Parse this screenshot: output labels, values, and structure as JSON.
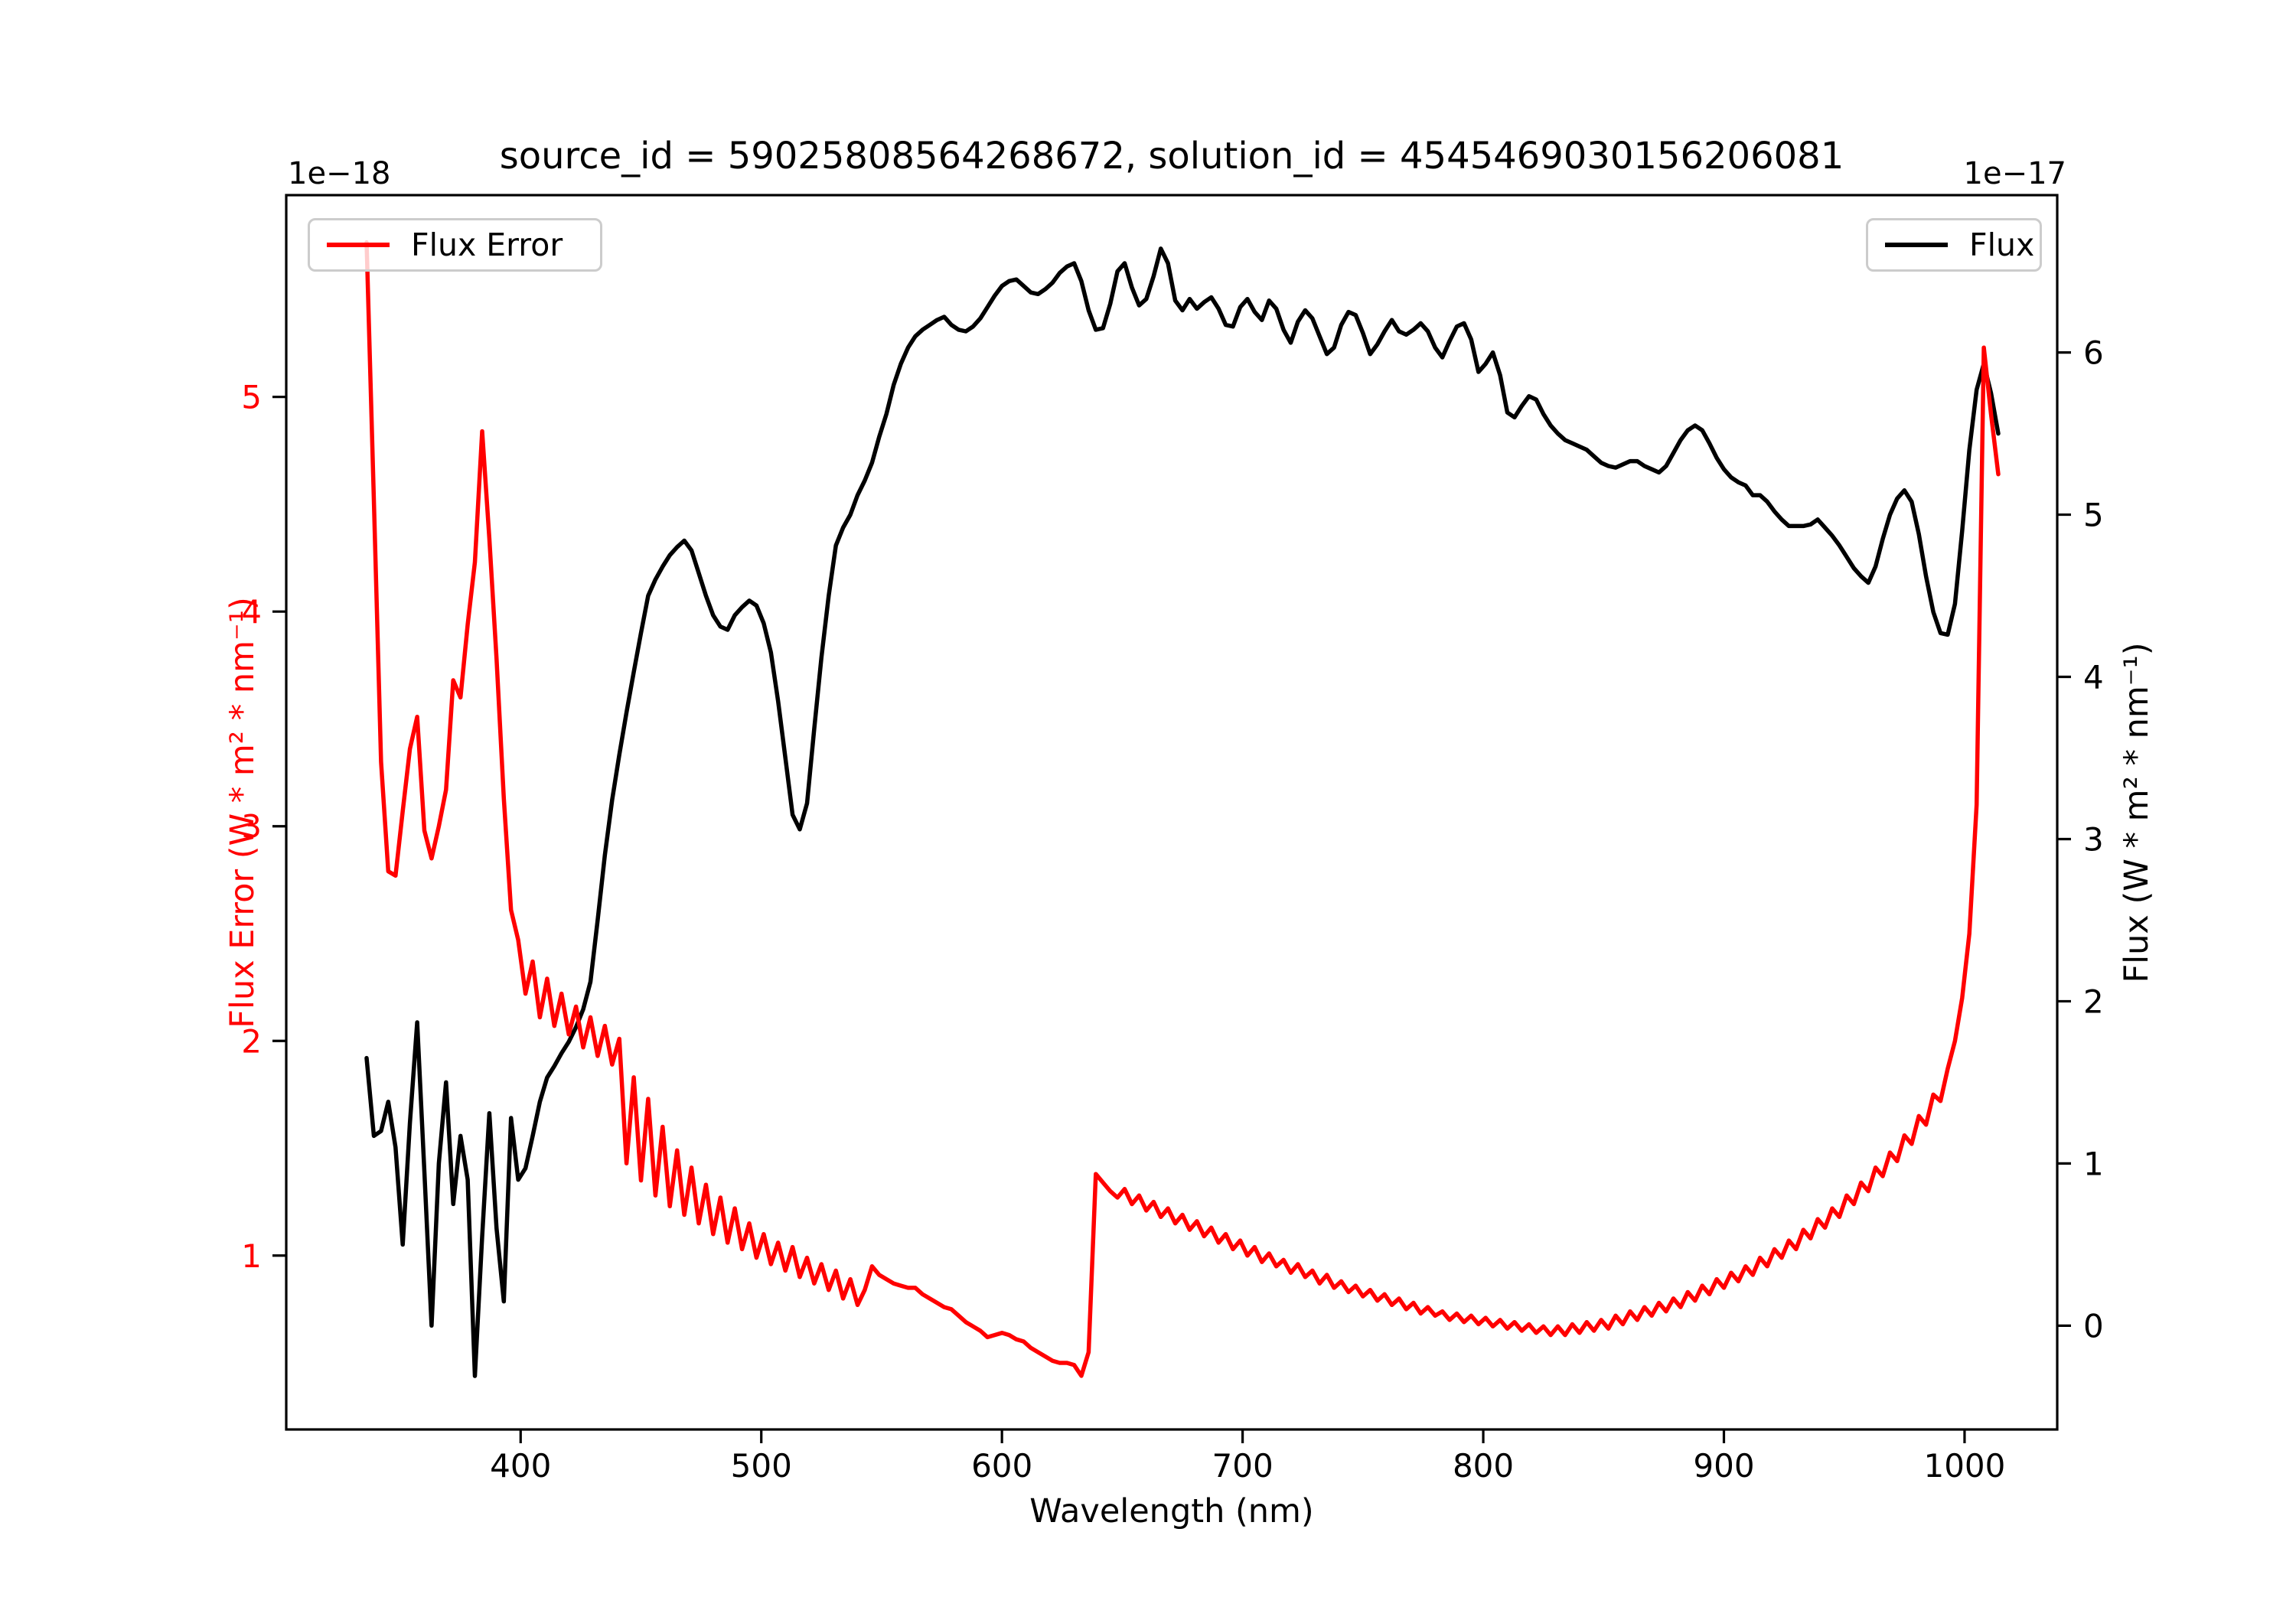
{
  "figure": {
    "title": "source_id = 59025808564268672, solution_id = 4545469030156206081",
    "offset_left": "1e−18",
    "offset_right": "1e−17",
    "xlabel": "Wavelength (nm)",
    "ylabel_left": "Flux Error (W * m² * nm⁻¹)",
    "ylabel_right": "Flux (W * m² * nm⁻¹)",
    "legend_left_label": "Flux Error",
    "legend_right_label": "Flux",
    "background": "#ffffff",
    "colors": {
      "flux_error": "#ff0000",
      "flux": "#000000",
      "legend_border": "#cccccc",
      "axis": "#000000"
    }
  },
  "chart_data": {
    "type": "line",
    "title": "source_id = 59025808564268672, solution_id = 4545469030156206081",
    "xlabel": "Wavelength (nm)",
    "x_ticks": [
      400,
      500,
      600,
      700,
      800,
      900,
      1000
    ],
    "xlim": [
      302.6,
      1038.5
    ],
    "grid": false,
    "legend_positions": {
      "flux_error": "upper left",
      "flux": "upper right"
    },
    "axes": {
      "left": {
        "label": "Flux Error (W * m² * nm⁻¹)",
        "scale": "1e-18",
        "ticks": [
          1,
          2,
          3,
          4,
          5
        ],
        "lim": [
          0.19,
          5.94
        ],
        "color": "#ff0000"
      },
      "right": {
        "label": "Flux (W * m² * nm⁻¹)",
        "scale": "1e-17",
        "ticks": [
          0,
          1,
          2,
          3,
          4,
          5,
          6
        ],
        "lim": [
          -0.64,
          6.97
        ],
        "color": "#000000"
      }
    },
    "x_start": 336,
    "x_step": 3,
    "series": [
      {
        "name": "Flux Error",
        "axis": "left",
        "color": "#ff0000",
        "values": [
          5.72,
          4.52,
          3.3,
          2.79,
          2.77,
          3.07,
          3.36,
          3.51,
          2.98,
          2.85,
          3.0,
          3.17,
          3.68,
          3.6,
          3.94,
          4.23,
          4.84,
          4.34,
          3.78,
          3.13,
          2.61,
          2.47,
          2.22,
          2.37,
          2.11,
          2.29,
          2.07,
          2.22,
          2.03,
          2.16,
          1.97,
          2.11,
          1.93,
          2.07,
          1.89,
          2.01,
          1.43,
          1.83,
          1.35,
          1.73,
          1.28,
          1.6,
          1.23,
          1.49,
          1.19,
          1.41,
          1.15,
          1.33,
          1.1,
          1.27,
          1.06,
          1.22,
          1.03,
          1.15,
          0.99,
          1.1,
          0.96,
          1.06,
          0.93,
          1.04,
          0.9,
          0.99,
          0.87,
          0.96,
          0.84,
          0.93,
          0.8,
          0.89,
          0.77,
          0.84,
          0.95,
          0.91,
          0.89,
          0.87,
          0.86,
          0.85,
          0.85,
          0.82,
          0.8,
          0.78,
          0.76,
          0.75,
          0.72,
          0.69,
          0.67,
          0.65,
          0.62,
          0.63,
          0.64,
          0.63,
          0.61,
          0.6,
          0.57,
          0.55,
          0.53,
          0.51,
          0.5,
          0.5,
          0.49,
          0.44,
          0.55,
          1.38,
          1.34,
          1.3,
          1.27,
          1.31,
          1.24,
          1.28,
          1.21,
          1.25,
          1.18,
          1.22,
          1.15,
          1.19,
          1.12,
          1.16,
          1.09,
          1.13,
          1.06,
          1.1,
          1.03,
          1.07,
          1.0,
          1.04,
          0.97,
          1.01,
          0.95,
          0.98,
          0.92,
          0.96,
          0.9,
          0.93,
          0.87,
          0.91,
          0.85,
          0.88,
          0.83,
          0.86,
          0.81,
          0.84,
          0.79,
          0.82,
          0.77,
          0.8,
          0.75,
          0.78,
          0.73,
          0.76,
          0.72,
          0.74,
          0.7,
          0.73,
          0.69,
          0.72,
          0.68,
          0.71,
          0.67,
          0.7,
          0.66,
          0.69,
          0.65,
          0.68,
          0.64,
          0.67,
          0.63,
          0.67,
          0.63,
          0.68,
          0.64,
          0.69,
          0.65,
          0.7,
          0.66,
          0.72,
          0.68,
          0.74,
          0.7,
          0.76,
          0.72,
          0.78,
          0.74,
          0.8,
          0.76,
          0.83,
          0.79,
          0.86,
          0.82,
          0.89,
          0.85,
          0.92,
          0.88,
          0.95,
          0.91,
          0.99,
          0.95,
          1.03,
          0.99,
          1.07,
          1.03,
          1.12,
          1.08,
          1.17,
          1.13,
          1.22,
          1.18,
          1.28,
          1.24,
          1.34,
          1.3,
          1.41,
          1.37,
          1.48,
          1.44,
          1.56,
          1.52,
          1.65,
          1.61,
          1.75,
          1.72,
          1.87,
          2.0,
          2.2,
          2.5,
          3.1,
          5.23,
          4.92,
          4.64
        ]
      },
      {
        "name": "Flux",
        "axis": "right",
        "color": "#000000",
        "values": [
          1.65,
          1.17,
          1.2,
          1.38,
          1.1,
          0.5,
          1.25,
          1.87,
          0.95,
          0.0,
          1.0,
          1.5,
          0.75,
          1.17,
          0.9,
          -0.31,
          0.55,
          1.31,
          0.6,
          0.15,
          1.28,
          0.9,
          0.97,
          1.17,
          1.38,
          1.53,
          1.6,
          1.68,
          1.75,
          1.84,
          1.95,
          2.12,
          2.5,
          2.9,
          3.24,
          3.52,
          3.78,
          4.03,
          4.27,
          4.5,
          4.6,
          4.68,
          4.75,
          4.8,
          4.84,
          4.78,
          4.64,
          4.5,
          4.38,
          4.31,
          4.29,
          4.38,
          4.43,
          4.47,
          4.44,
          4.33,
          4.15,
          3.85,
          3.5,
          3.15,
          3.06,
          3.22,
          3.68,
          4.12,
          4.5,
          4.81,
          4.92,
          5.0,
          5.12,
          5.21,
          5.32,
          5.48,
          5.62,
          5.8,
          5.93,
          6.03,
          6.1,
          6.14,
          6.17,
          6.2,
          6.22,
          6.17,
          6.14,
          6.13,
          6.16,
          6.21,
          6.28,
          6.35,
          6.41,
          6.44,
          6.45,
          6.41,
          6.37,
          6.36,
          6.39,
          6.43,
          6.49,
          6.53,
          6.55,
          6.44,
          6.26,
          6.14,
          6.15,
          6.3,
          6.5,
          6.55,
          6.4,
          6.29,
          6.33,
          6.47,
          6.64,
          6.55,
          6.32,
          6.26,
          6.33,
          6.27,
          6.31,
          6.34,
          6.27,
          6.17,
          6.16,
          6.28,
          6.33,
          6.25,
          6.2,
          6.32,
          6.27,
          6.14,
          6.06,
          6.19,
          6.26,
          6.21,
          6.1,
          5.99,
          6.03,
          6.17,
          6.25,
          6.23,
          6.12,
          5.99,
          6.05,
          6.13,
          6.2,
          6.13,
          6.11,
          6.14,
          6.18,
          6.13,
          6.03,
          5.97,
          6.07,
          6.16,
          6.18,
          6.08,
          5.88,
          5.93,
          6.0,
          5.86,
          5.63,
          5.6,
          5.67,
          5.73,
          5.71,
          5.62,
          5.55,
          5.5,
          5.46,
          5.44,
          5.42,
          5.4,
          5.36,
          5.32,
          5.3,
          5.29,
          5.31,
          5.33,
          5.33,
          5.3,
          5.28,
          5.26,
          5.3,
          5.38,
          5.46,
          5.52,
          5.55,
          5.52,
          5.44,
          5.35,
          5.28,
          5.23,
          5.2,
          5.18,
          5.12,
          5.12,
          5.08,
          5.02,
          4.97,
          4.93,
          4.93,
          4.93,
          4.94,
          4.97,
          4.92,
          4.87,
          4.81,
          4.74,
          4.67,
          4.62,
          4.58,
          4.68,
          4.85,
          5.0,
          5.1,
          5.15,
          5.08,
          4.88,
          4.62,
          4.4,
          4.27,
          4.26,
          4.45,
          4.9,
          5.4,
          5.77,
          5.93,
          5.75,
          5.5
        ]
      }
    ]
  }
}
